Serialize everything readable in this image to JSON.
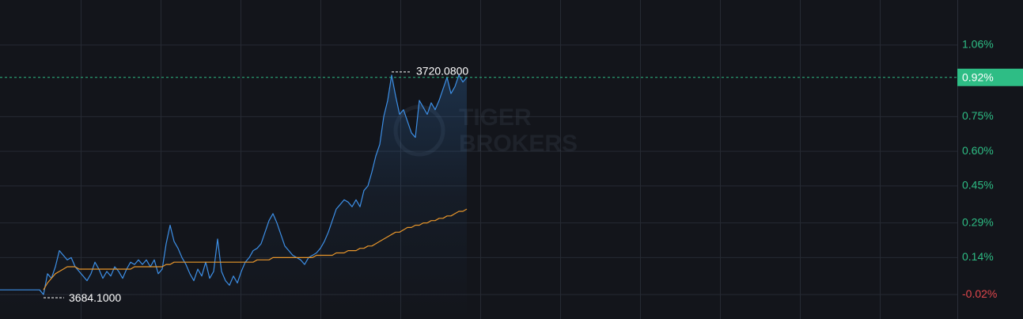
{
  "chart_data": {
    "type": "line",
    "ylim": [
      -0.126,
      1.255
    ],
    "yticks": [
      {
        "value": 1.06,
        "label": "1.06%"
      },
      {
        "value": 0.75,
        "label": "0.75%"
      },
      {
        "value": 0.6,
        "label": "0.60%"
      },
      {
        "value": 0.45,
        "label": "0.45%"
      },
      {
        "value": 0.29,
        "label": "0.29%"
      },
      {
        "value": 0.14,
        "label": "0.14%"
      },
      {
        "value": -0.02,
        "label": "-0.02%"
      }
    ],
    "grid": true,
    "up_color": "#2ebd85",
    "down_color": "#e0474c",
    "last": {
      "value": 0.92,
      "label": "0.92%"
    },
    "high_label": "3720.0800",
    "low_label": "3684.1000",
    "watermark": [
      "TIGER",
      "BROKERS"
    ],
    "categories": [
      null,
      null,
      null,
      null,
      null,
      null,
      null,
      null,
      null,
      null,
      null,
      null,
      null,
      null,
      null,
      null,
      null,
      null,
      null,
      null,
      null,
      null,
      null,
      null,
      null,
      null,
      null,
      null,
      null,
      null,
      null,
      null,
      null,
      null,
      null,
      null,
      null,
      null,
      null,
      null,
      null,
      null,
      null,
      null,
      null,
      null,
      null,
      null,
      null,
      null,
      null,
      null,
      null,
      null,
      null,
      null,
      null,
      null,
      null,
      null,
      null,
      null,
      null,
      null,
      null,
      null,
      null,
      null,
      null,
      null,
      null,
      null,
      null,
      null,
      null,
      null,
      null,
      null,
      null,
      null,
      null,
      null,
      null,
      null,
      null,
      null,
      null,
      null,
      null,
      null,
      null,
      null,
      null,
      null,
      null,
      null,
      null,
      null,
      null,
      null,
      null,
      null,
      null,
      null,
      null,
      null,
      null,
      null,
      null,
      null,
      null,
      null,
      null,
      null,
      null,
      null,
      null,
      null,
      null
    ],
    "series": [
      {
        "color": "#3d8fe6",
        "values": [
          0,
          0,
          0,
          0,
          0,
          0,
          0,
          0,
          0,
          0,
          0,
          -0.02,
          0.07,
          0.05,
          0.1,
          0.17,
          0.15,
          0.13,
          0.14,
          0.1,
          0.08,
          0.06,
          0.04,
          0.07,
          0.12,
          0.09,
          0.05,
          0.08,
          0.06,
          0.1,
          0.08,
          0.05,
          0.09,
          0.12,
          0.11,
          0.13,
          0.11,
          0.13,
          0.1,
          0.13,
          0.07,
          0.09,
          0.2,
          0.28,
          0.21,
          0.18,
          0.14,
          0.11,
          0.07,
          0.04,
          0.09,
          0.06,
          0.12,
          0.05,
          0.08,
          0.22,
          0.08,
          0.04,
          0.02,
          0.06,
          0.03,
          0.08,
          0.12,
          0.14,
          0.17,
          0.18,
          0.2,
          0.25,
          0.3,
          0.33,
          0.29,
          0.24,
          0.19,
          0.17,
          0.15,
          0.14,
          0.13,
          0.11,
          0.14,
          0.15,
          0.16,
          0.18,
          0.21,
          0.25,
          0.3,
          0.35,
          0.37,
          0.39,
          0.38,
          0.36,
          0.39,
          0.36,
          0.43,
          0.45,
          0.51,
          0.58,
          0.63,
          0.75,
          0.82,
          0.93,
          0.84,
          0.76,
          0.78,
          0.73,
          0.68,
          0.66,
          0.82,
          0.79,
          0.76,
          0.81,
          0.78,
          0.82,
          0.87,
          0.92,
          0.85,
          0.88,
          0.93,
          0.9,
          0.92
        ]
      },
      {
        "color": "#e8962b",
        "values": [
          null,
          null,
          null,
          null,
          null,
          null,
          null,
          null,
          null,
          null,
          null,
          0.0,
          0.03,
          0.05,
          0.07,
          0.08,
          0.09,
          0.1,
          0.1,
          0.1,
          0.09,
          0.09,
          0.09,
          0.09,
          0.09,
          0.09,
          0.09,
          0.09,
          0.09,
          0.09,
          0.09,
          0.09,
          0.09,
          0.09,
          0.1,
          0.1,
          0.1,
          0.1,
          0.1,
          0.1,
          0.1,
          0.1,
          0.11,
          0.11,
          0.12,
          0.12,
          0.12,
          0.12,
          0.12,
          0.12,
          0.12,
          0.12,
          0.12,
          0.12,
          0.12,
          0.12,
          0.12,
          0.12,
          0.12,
          0.12,
          0.12,
          0.12,
          0.12,
          0.12,
          0.12,
          0.13,
          0.13,
          0.13,
          0.13,
          0.14,
          0.14,
          0.14,
          0.14,
          0.14,
          0.14,
          0.14,
          0.14,
          0.14,
          0.14,
          0.14,
          0.15,
          0.15,
          0.15,
          0.15,
          0.15,
          0.16,
          0.16,
          0.16,
          0.17,
          0.17,
          0.17,
          0.18,
          0.18,
          0.19,
          0.19,
          0.2,
          0.21,
          0.22,
          0.23,
          0.24,
          0.25,
          0.25,
          0.26,
          0.27,
          0.27,
          0.28,
          0.28,
          0.29,
          0.29,
          0.3,
          0.3,
          0.31,
          0.31,
          0.32,
          0.32,
          0.33,
          0.34,
          0.34,
          0.35
        ]
      }
    ]
  }
}
